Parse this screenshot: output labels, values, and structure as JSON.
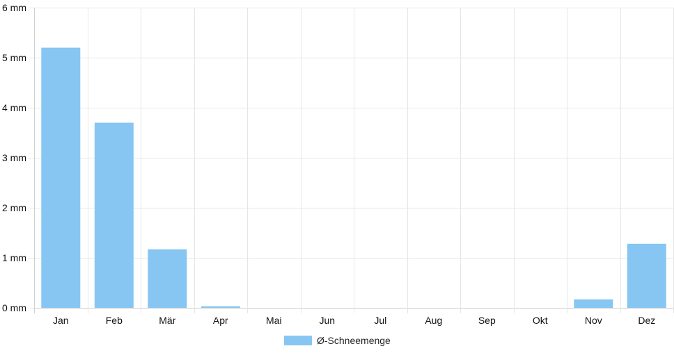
{
  "chart_data": {
    "type": "bar",
    "categories": [
      "Jan",
      "Feb",
      "Mär",
      "Apr",
      "Mai",
      "Jun",
      "Jul",
      "Aug",
      "Sep",
      "Okt",
      "Nov",
      "Dez"
    ],
    "series": [
      {
        "name": "Ø-Schneemenge",
        "values": [
          5.2,
          3.7,
          1.17,
          0.03,
          0,
          0,
          0,
          0,
          0,
          0,
          0.17,
          1.28
        ],
        "color": "#87c6f2"
      }
    ],
    "ylim": [
      0,
      6
    ],
    "yticks": [
      0,
      1,
      2,
      3,
      4,
      5,
      6
    ],
    "y_unit": "mm",
    "grid": true,
    "legend_position": "bottom-center"
  },
  "colors": {
    "grid": "#e6e6e6",
    "axis": "#cfcfcf",
    "text": "#111111"
  }
}
